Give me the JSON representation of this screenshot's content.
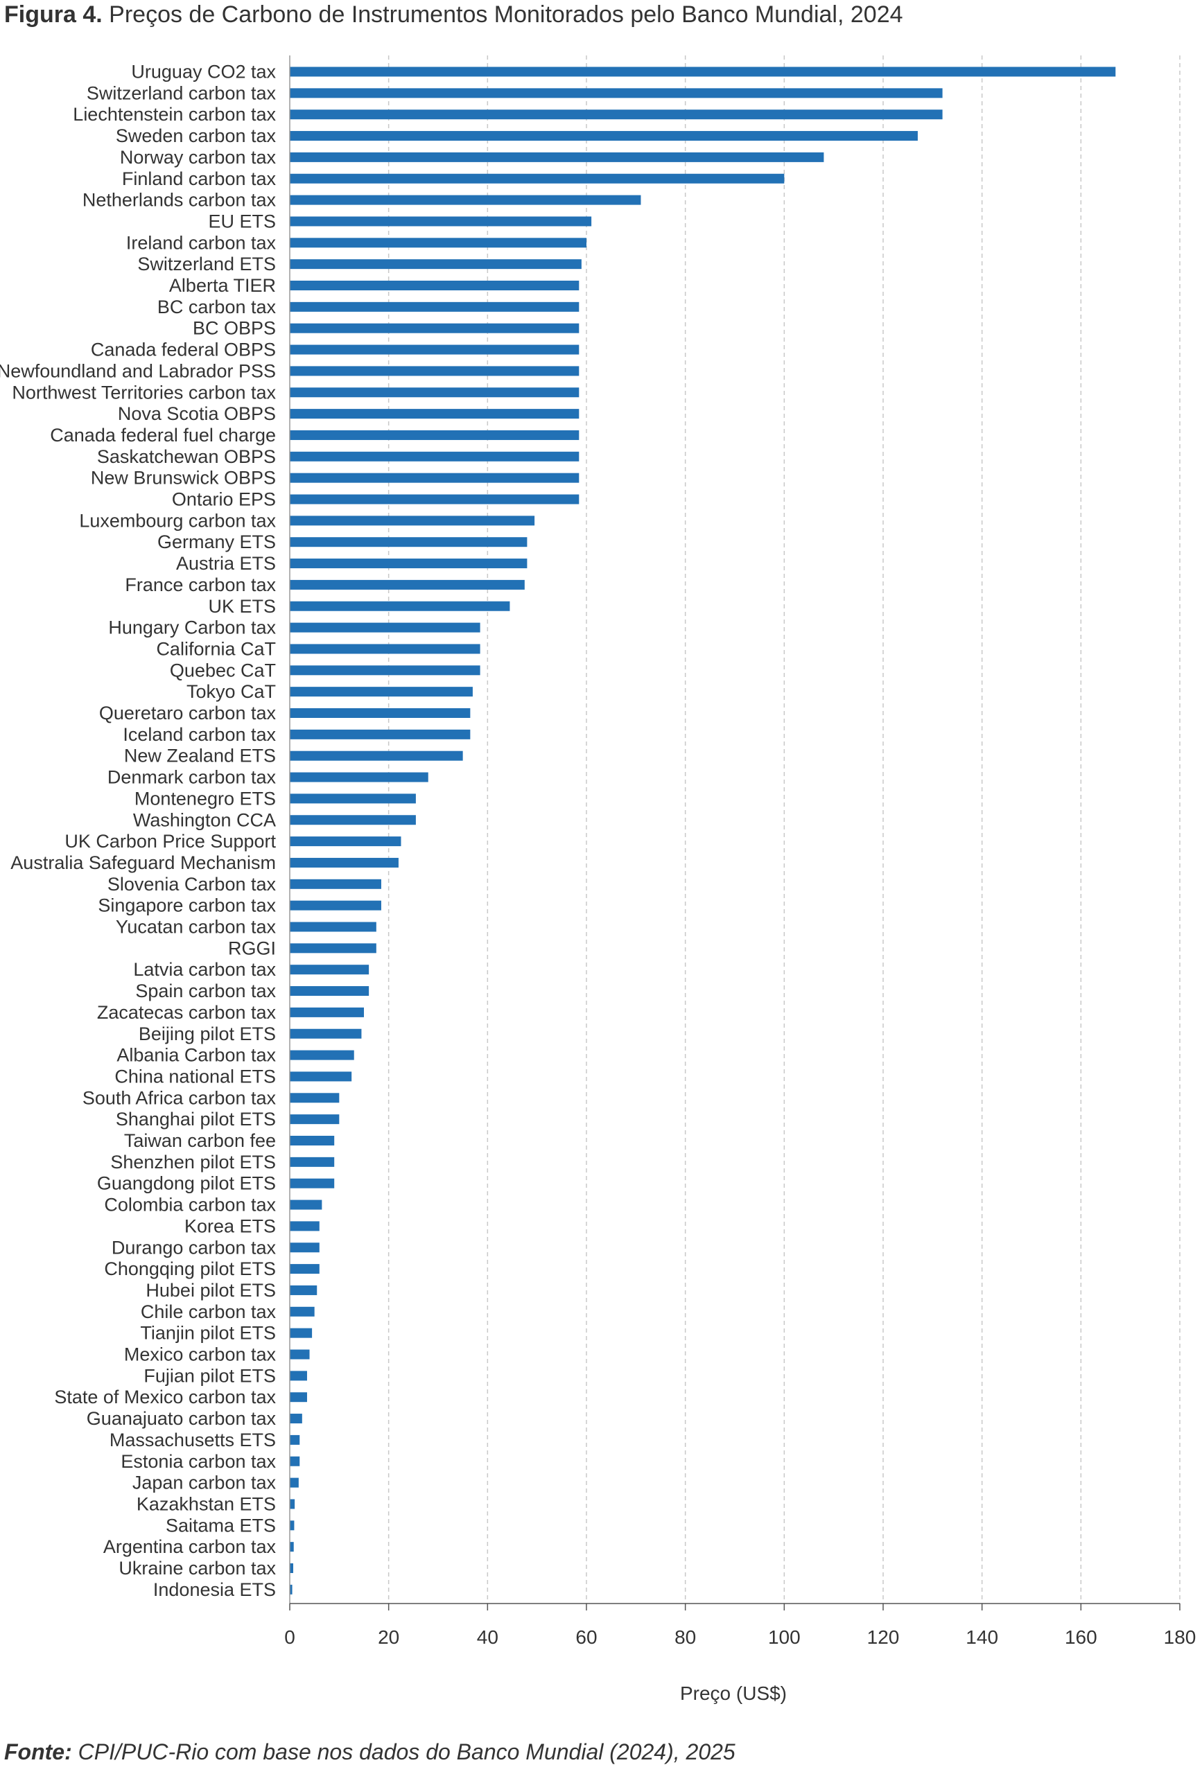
{
  "figure": {
    "title_prefix": "Figura 4.",
    "title_text": "Preços de Carbono de Instrumentos Monitorados pelo Banco Mundial, 2024",
    "source_prefix": "Fonte:",
    "source_text": "CPI/PUC-Rio com base nos dados do Banco Mundial (2024), 2025"
  },
  "chart_data": {
    "type": "bar",
    "orientation": "horizontal",
    "xlabel": "Preço (US$)",
    "ylabel": "",
    "xlim": [
      0,
      180
    ],
    "xticks": [
      0,
      20,
      40,
      60,
      80,
      100,
      120,
      140,
      160,
      180
    ],
    "grid": "vertical dashed",
    "bar_color": "#2271b5",
    "categories": [
      "Uruguay CO2 tax",
      "Switzerland carbon tax",
      "Liechtenstein carbon tax",
      "Sweden carbon tax",
      "Norway carbon tax",
      "Finland carbon tax",
      "Netherlands carbon tax",
      "EU ETS",
      "Ireland carbon tax",
      "Switzerland ETS",
      "Alberta TIER",
      "BC carbon tax",
      "BC OBPS",
      "Canada federal OBPS",
      "Newfoundland and Labrador PSS",
      "Northwest Territories carbon tax",
      "Nova Scotia OBPS",
      "Canada federal fuel charge",
      "Saskatchewan OBPS",
      "New Brunswick OBPS",
      "Ontario EPS",
      "Luxembourg carbon tax",
      "Germany ETS",
      "Austria ETS",
      "France carbon tax",
      "UK ETS",
      "Hungary Carbon tax",
      "California CaT",
      "Quebec CaT",
      "Tokyo CaT",
      "Queretaro carbon tax",
      "Iceland carbon tax",
      "New Zealand ETS",
      "Denmark carbon tax",
      "Montenegro ETS",
      "Washington CCA",
      "UK Carbon Price Support",
      "Australia Safeguard Mechanism",
      "Slovenia Carbon tax",
      "Singapore carbon tax",
      "Yucatan carbon tax",
      "RGGI",
      "Latvia carbon tax",
      "Spain carbon tax",
      "Zacatecas carbon tax",
      "Beijing pilot ETS",
      "Albania Carbon tax",
      "China national ETS",
      "South Africa carbon tax",
      "Shanghai pilot ETS",
      "Taiwan carbon fee",
      "Shenzhen pilot ETS",
      "Guangdong pilot ETS",
      "Colombia carbon tax",
      "Korea ETS",
      "Durango carbon tax",
      "Chongqing pilot ETS",
      "Hubei pilot ETS",
      "Chile carbon tax",
      "Tianjin pilot ETS",
      "Mexico carbon tax",
      "Fujian pilot ETS",
      "State of Mexico carbon tax",
      "Guanajuato carbon tax",
      "Massachusetts ETS",
      "Estonia carbon tax",
      "Japan carbon tax",
      "Kazakhstan ETS",
      "Saitama ETS",
      "Argentina carbon tax",
      "Ukraine carbon tax",
      "Indonesia ETS"
    ],
    "values": [
      167,
      132,
      132,
      127,
      108,
      100,
      71,
      61,
      60,
      59,
      58.5,
      58.5,
      58.5,
      58.5,
      58.5,
      58.5,
      58.5,
      58.5,
      58.5,
      58.5,
      58.5,
      49.5,
      48,
      48,
      47.5,
      44.5,
      38.5,
      38.5,
      38.5,
      37,
      36.5,
      36.5,
      35,
      28,
      25.5,
      25.5,
      22.5,
      22,
      18.5,
      18.5,
      17.5,
      17.5,
      16,
      16,
      15,
      14.5,
      13,
      12.5,
      10,
      10,
      9,
      9,
      9,
      6.5,
      6,
      6,
      6,
      5.5,
      5,
      4.5,
      4,
      3.5,
      3.5,
      2.5,
      2,
      2,
      1.8,
      1,
      0.9,
      0.8,
      0.7,
      0.5
    ]
  }
}
